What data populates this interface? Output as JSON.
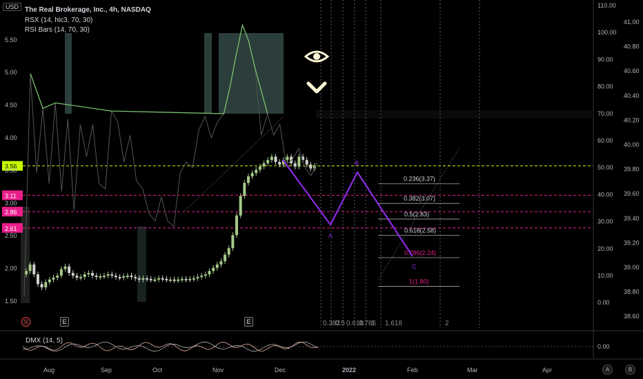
{
  "header": {
    "title": "The Real Brokerage, Inc., 4h, NASDAQ",
    "indicator1": "RSX (14, hlc3, 70, 30)",
    "indicator2": "RSI Bars (14, 70, 30)",
    "currency": "USD"
  },
  "lower_pane": {
    "label": "DMX (14, 5)",
    "zero_label": "0.00"
  },
  "events": [
    {
      "id": "S",
      "kind": "split"
    },
    {
      "id": "E",
      "kind": "earnings"
    },
    {
      "id": "E",
      "kind": "earnings"
    }
  ],
  "corner_buttons": [
    "A",
    "B"
  ],
  "colors": {
    "background": "#000000",
    "candle_up": "#a6c98a",
    "candle_down": "#cfd3cc",
    "rsx_line": "#7ac270",
    "zone_fill": "#5f8a84",
    "pattern_line": "#8a2be2",
    "fib_magenta": "#e91e8c",
    "last_price": "#c6ff00",
    "fib_text": "#d1d4dc"
  },
  "chart_data": {
    "type": "candlestick",
    "title": "The Real Brokerage, Inc., 4h, NASDAQ",
    "price_axis": {
      "ticks": [
        "5.50",
        "5.00",
        "4.50",
        "4.00",
        "3.50",
        "3.00",
        "2.50",
        "2.00",
        "1.50"
      ],
      "range": [
        1.3,
        5.8
      ]
    },
    "rsx_axis": {
      "ticks": [
        "110.00",
        "100.00",
        "90.00",
        "80.00",
        "70.00",
        "60.00",
        "50.00",
        "40.00",
        "30.00",
        "20.00",
        "10.00",
        "0.00"
      ],
      "range": [
        -5,
        110
      ]
    },
    "fib_time_axis": {
      "ticks": [
        "41.00",
        "40.80",
        "40.60",
        "40.40",
        "40.20",
        "40.00",
        "39.80",
        "39.60",
        "39.40",
        "39.20",
        "39.00",
        "38.80",
        "38.60"
      ]
    },
    "x_axis": {
      "ticks": [
        "Aug",
        "Sep",
        "Oct",
        "Nov",
        "Dec",
        "2022",
        "Feb",
        "Mar",
        "Apr"
      ]
    },
    "price_labels": [
      {
        "text": "3.56",
        "kind": "last"
      },
      {
        "text": "3.11",
        "kind": "level"
      },
      {
        "text": "2.86",
        "kind": "level"
      },
      {
        "text": "2.61",
        "kind": "level"
      }
    ],
    "horizontal_levels": [
      3.56,
      3.11,
      2.86,
      2.61
    ],
    "candles_close": [
      1.95,
      2.05,
      1.9,
      1.75,
      1.7,
      1.78,
      1.82,
      1.85,
      1.88,
      1.98,
      2.02,
      1.92,
      1.88,
      1.85,
      1.86,
      1.9,
      1.92,
      1.88,
      1.86,
      1.87,
      1.88,
      1.9,
      1.88,
      1.86,
      1.85,
      1.87,
      1.88,
      1.86,
      1.84,
      1.82,
      1.84,
      1.83,
      1.82,
      1.82,
      1.84,
      1.83,
      1.82,
      1.82,
      1.81,
      1.82,
      1.83,
      1.82,
      1.83,
      1.84,
      1.86,
      1.88,
      1.9,
      1.95,
      2.0,
      2.05,
      2.1,
      2.2,
      2.3,
      2.5,
      2.8,
      3.1,
      3.3,
      3.4,
      3.45,
      3.5,
      3.55,
      3.6,
      3.65,
      3.7,
      3.62,
      3.58,
      3.65,
      3.7,
      3.6,
      3.55,
      3.7,
      3.65,
      3.58,
      3.52,
      3.56
    ],
    "rsx": [
      2,
      85,
      48,
      72,
      44,
      74,
      41,
      68,
      34,
      66,
      54,
      66,
      44,
      42,
      71,
      67,
      52,
      62,
      45,
      42,
      33,
      30,
      39,
      30,
      28,
      48,
      52,
      50,
      64,
      69,
      61,
      67,
      70,
      80,
      92,
      103,
      97,
      87,
      62,
      70,
      62,
      66,
      51,
      53,
      57,
      50,
      47,
      52
    ],
    "fib_retracement": [
      {
        "ratio": "0.236",
        "price": "3.37"
      },
      {
        "ratio": "0.382",
        "price": "3.07"
      },
      {
        "ratio": "0.5",
        "price": "2.83"
      },
      {
        "ratio": "0.618",
        "price": "2.58"
      },
      {
        "ratio": "0.786",
        "price": "2.24"
      },
      {
        "ratio": "1",
        "price": "1.80"
      }
    ],
    "fib_time_labels": [
      "0.382",
      "0.5",
      "0.618",
      "0.786",
      "1",
      "1.618",
      "2"
    ],
    "pattern_points": [
      {
        "label": "A",
        "price": 2.6
      },
      {
        "label": "B",
        "price": 3.45
      },
      {
        "label": "C",
        "price": 2.1
      }
    ]
  }
}
